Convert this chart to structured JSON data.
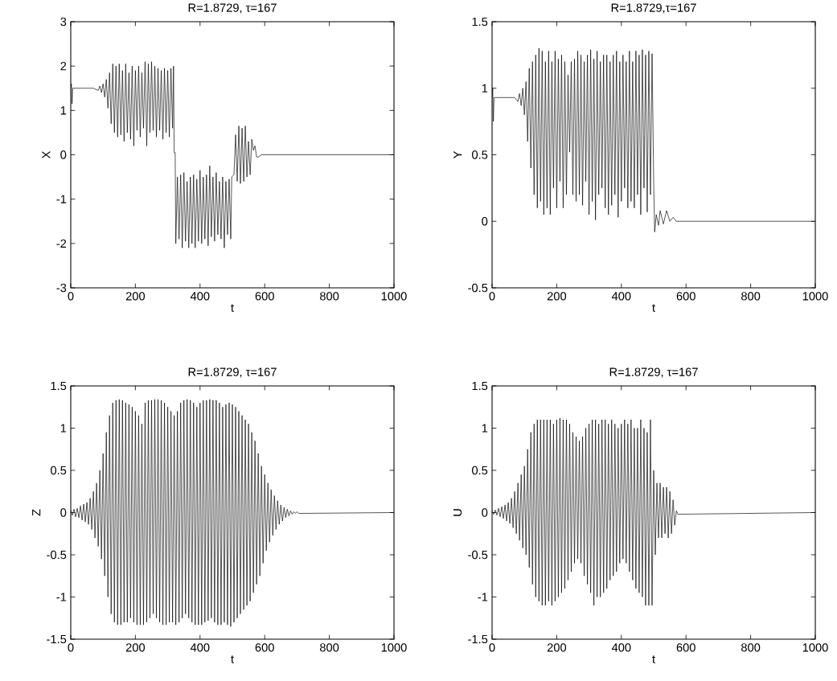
{
  "chart_data": [
    {
      "type": "line",
      "title": "R=1.8729, τ=167",
      "xlabel": "t",
      "ylabel": "X",
      "color": "#000000",
      "xlim": [
        0,
        1000
      ],
      "ylim": [
        -3,
        3
      ],
      "xticks": [
        0,
        200,
        400,
        600,
        800,
        1000
      ],
      "yticks": [
        -3,
        -2,
        -1,
        0,
        1,
        2,
        3
      ],
      "x": [
        0,
        2,
        4,
        6,
        70,
        85,
        90,
        95,
        100,
        105,
        110,
        115,
        120,
        125,
        130,
        135,
        140,
        145,
        150,
        155,
        160,
        165,
        170,
        175,
        180,
        185,
        190,
        195,
        200,
        205,
        210,
        215,
        220,
        225,
        230,
        232,
        235,
        240,
        245,
        250,
        255,
        260,
        265,
        270,
        275,
        280,
        285,
        290,
        295,
        300,
        305,
        310,
        315,
        318,
        320,
        323,
        325,
        330,
        335,
        340,
        345,
        350,
        355,
        360,
        365,
        370,
        375,
        380,
        385,
        390,
        395,
        400,
        405,
        410,
        415,
        420,
        425,
        430,
        435,
        440,
        445,
        450,
        455,
        460,
        465,
        470,
        475,
        480,
        485,
        490,
        495,
        498,
        505,
        510,
        515,
        520,
        525,
        530,
        535,
        540,
        545,
        550,
        555,
        560,
        565,
        570,
        575,
        580,
        590,
        1000
      ],
      "values": [
        1.5,
        1.6,
        1.15,
        1.5,
        1.5,
        1.45,
        1.55,
        1.4,
        1.6,
        1.3,
        1.7,
        1.05,
        1.85,
        0.7,
        2.05,
        0.5,
        2.0,
        0.4,
        2.05,
        0.45,
        1.9,
        0.3,
        2.05,
        0.5,
        1.85,
        0.35,
        2.0,
        0.2,
        1.9,
        0.55,
        2.0,
        0.4,
        1.85,
        0.6,
        2.1,
        1.4,
        0.2,
        2.05,
        0.5,
        2.1,
        0.55,
        2.0,
        0.4,
        1.95,
        0.55,
        1.9,
        0.35,
        1.95,
        0.5,
        1.9,
        0.4,
        1.95,
        0.6,
        2.0,
        0.05,
        0.05,
        -2.0,
        -0.5,
        -1.9,
        -0.45,
        -2.1,
        -0.4,
        -1.95,
        -0.6,
        -2.1,
        -0.5,
        -2.0,
        -0.45,
        -2.1,
        -0.55,
        -1.95,
        -0.35,
        -2.0,
        -0.5,
        -1.9,
        -0.45,
        -2.05,
        -0.25,
        -1.85,
        -0.5,
        -1.95,
        -0.4,
        -1.8,
        -0.6,
        -1.9,
        -0.5,
        -2.1,
        -0.6,
        -1.8,
        -0.55,
        -1.9,
        -0.5,
        -0.45,
        0.45,
        -0.6,
        0.65,
        -0.65,
        0.6,
        -0.6,
        0.65,
        -0.5,
        0.3,
        -0.45,
        0.35,
        0.1,
        0.2,
        -0.05,
        -0.05,
        0,
        0
      ]
    },
    {
      "type": "line",
      "title": "R=1.8729,τ=167",
      "xlabel": "t",
      "ylabel": "Y",
      "color": "#000000",
      "xlim": [
        0,
        1000
      ],
      "ylim": [
        -0.5,
        1.5
      ],
      "xticks": [
        0,
        200,
        400,
        600,
        800,
        1000
      ],
      "yticks": [
        -0.5,
        0,
        0.5,
        1,
        1.5
      ],
      "x": [
        0,
        2,
        4,
        6,
        70,
        80,
        85,
        90,
        95,
        100,
        105,
        110,
        115,
        120,
        125,
        130,
        135,
        140,
        145,
        150,
        155,
        160,
        165,
        170,
        175,
        180,
        185,
        190,
        195,
        200,
        205,
        210,
        215,
        220,
        225,
        230,
        235,
        240,
        245,
        250,
        255,
        260,
        265,
        270,
        275,
        280,
        285,
        290,
        295,
        300,
        305,
        310,
        315,
        320,
        325,
        330,
        335,
        340,
        345,
        350,
        355,
        360,
        365,
        370,
        375,
        380,
        385,
        390,
        395,
        400,
        405,
        410,
        415,
        420,
        425,
        430,
        435,
        440,
        445,
        450,
        455,
        460,
        465,
        470,
        475,
        480,
        485,
        490,
        495,
        500,
        503,
        508,
        515,
        520,
        530,
        540,
        550,
        560,
        570,
        1000
      ],
      "values": [
        0.93,
        1.0,
        0.75,
        0.93,
        0.93,
        0.9,
        0.96,
        0.87,
        1.0,
        0.8,
        1.05,
        0.6,
        1.15,
        0.4,
        1.2,
        0.2,
        1.25,
        0.1,
        1.3,
        0.15,
        1.28,
        0.05,
        1.2,
        0.1,
        1.28,
        0.05,
        1.2,
        0.25,
        1.28,
        0.1,
        1.22,
        0.3,
        1.25,
        0.1,
        1.2,
        0.2,
        1.1,
        0.52,
        1.2,
        0.2,
        1.22,
        0.15,
        1.28,
        0.2,
        1.25,
        0.12,
        1.2,
        0.3,
        1.25,
        0.05,
        1.29,
        0.15,
        1.22,
        0.01,
        1.28,
        0.2,
        1.2,
        0.25,
        1.25,
        0.1,
        1.25,
        0.05,
        1.2,
        0.12,
        1.25,
        0.2,
        1.28,
        0.03,
        1.2,
        0.15,
        1.25,
        0.25,
        1.2,
        0.1,
        1.28,
        0.15,
        1.2,
        0.1,
        1.28,
        0.2,
        1.25,
        0.05,
        1.29,
        0.25,
        1.25,
        0.07,
        1.28,
        0.2,
        1.26,
        0.3,
        -0.08,
        0.05,
        -0.03,
        0.08,
        -0.02,
        0.08,
        0,
        0.03,
        0,
        0
      ]
    },
    {
      "type": "line",
      "title": "R=1.8729, τ=167",
      "xlabel": "t",
      "ylabel": "Z",
      "color": "#000000",
      "xlim": [
        0,
        1000
      ],
      "ylim": [
        -1.5,
        1.5
      ],
      "xticks": [
        0,
        200,
        400,
        600,
        800,
        1000
      ],
      "yticks": [
        -1.5,
        -1,
        -0.5,
        0,
        0.5,
        1,
        1.5
      ],
      "x": [
        0,
        5,
        10,
        15,
        20,
        25,
        30,
        35,
        40,
        45,
        50,
        55,
        60,
        65,
        70,
        75,
        80,
        85,
        90,
        95,
        100,
        105,
        110,
        115,
        120,
        125,
        130,
        135,
        140,
        145,
        150,
        155,
        160,
        165,
        170,
        175,
        180,
        185,
        190,
        195,
        200,
        205,
        210,
        215,
        220,
        225,
        230,
        235,
        240,
        245,
        250,
        255,
        260,
        265,
        270,
        275,
        280,
        285,
        290,
        295,
        300,
        305,
        310,
        315,
        320,
        325,
        330,
        335,
        340,
        345,
        350,
        355,
        360,
        365,
        370,
        375,
        380,
        385,
        390,
        395,
        400,
        405,
        410,
        415,
        420,
        425,
        430,
        435,
        440,
        445,
        450,
        455,
        460,
        465,
        470,
        475,
        480,
        485,
        490,
        495,
        500,
        505,
        510,
        515,
        520,
        525,
        530,
        535,
        540,
        545,
        550,
        555,
        560,
        565,
        570,
        575,
        580,
        585,
        590,
        595,
        600,
        605,
        610,
        615,
        620,
        625,
        630,
        635,
        640,
        645,
        650,
        655,
        660,
        665,
        670,
        675,
        680,
        685,
        690,
        695,
        700,
        705,
        1000
      ],
      "values": [
        0.03,
        -0.03,
        0.04,
        -0.05,
        0.05,
        -0.06,
        0.08,
        -0.09,
        0.1,
        -0.11,
        0.12,
        -0.14,
        0.17,
        -0.2,
        0.25,
        -0.3,
        0.35,
        -0.4,
        0.5,
        -0.55,
        0.7,
        -0.75,
        0.95,
        -1.0,
        1.15,
        -1.2,
        1.3,
        -1.3,
        1.33,
        -1.33,
        1.34,
        -1.33,
        1.33,
        -1.3,
        1.3,
        -1.3,
        1.28,
        -1.25,
        1.25,
        -1.3,
        1.2,
        -1.33,
        1.15,
        -1.33,
        1.05,
        -1.33,
        1.3,
        -1.3,
        1.33,
        -1.25,
        1.33,
        -1.2,
        1.34,
        -1.25,
        1.34,
        -1.3,
        1.33,
        -1.33,
        1.3,
        -1.33,
        1.25,
        -1.3,
        1.2,
        -1.3,
        1.15,
        -1.33,
        1.2,
        -1.3,
        1.3,
        -1.25,
        1.33,
        -1.2,
        1.34,
        -1.25,
        1.33,
        -1.3,
        1.3,
        -1.33,
        1.25,
        -1.33,
        1.3,
        -1.33,
        1.33,
        -1.3,
        1.33,
        -1.28,
        1.34,
        -1.25,
        1.33,
        -1.3,
        1.33,
        -1.33,
        1.3,
        -1.33,
        1.25,
        -1.3,
        1.28,
        -1.33,
        1.3,
        -1.35,
        1.28,
        -1.3,
        1.25,
        -1.25,
        1.2,
        -1.2,
        1.15,
        -1.15,
        1.1,
        -1.1,
        1.05,
        -1.05,
        0.95,
        -0.95,
        0.85,
        -0.85,
        0.7,
        -0.75,
        0.55,
        -0.6,
        0.45,
        -0.45,
        0.35,
        -0.35,
        0.27,
        -0.27,
        0.2,
        -0.2,
        0.14,
        -0.14,
        0.09,
        -0.1,
        0.06,
        -0.06,
        0.04,
        -0.04,
        0.02,
        -0.02,
        0.01,
        -0.01,
        0.01,
        -0.01,
        0
      ]
    },
    {
      "type": "line",
      "title": "R=1.8729, τ=167",
      "xlabel": "t",
      "ylabel": "U",
      "color": "#000000",
      "xlim": [
        0,
        1000
      ],
      "ylim": [
        -1.5,
        1.5
      ],
      "xticks": [
        0,
        200,
        400,
        600,
        800,
        1000
      ],
      "yticks": [
        -1.5,
        -1,
        -0.5,
        0,
        0.5,
        1,
        1.5
      ],
      "x": [
        0,
        5,
        10,
        15,
        20,
        25,
        30,
        35,
        40,
        45,
        50,
        55,
        60,
        65,
        70,
        75,
        80,
        85,
        90,
        95,
        100,
        105,
        110,
        115,
        120,
        125,
        130,
        135,
        140,
        145,
        150,
        155,
        160,
        165,
        170,
        175,
        180,
        185,
        190,
        195,
        200,
        205,
        210,
        215,
        220,
        225,
        230,
        235,
        240,
        245,
        250,
        255,
        260,
        265,
        270,
        275,
        280,
        285,
        290,
        295,
        300,
        305,
        310,
        315,
        320,
        325,
        330,
        335,
        340,
        345,
        350,
        355,
        360,
        365,
        370,
        375,
        380,
        385,
        390,
        395,
        400,
        405,
        410,
        415,
        420,
        425,
        430,
        435,
        440,
        445,
        450,
        455,
        460,
        465,
        470,
        475,
        480,
        485,
        490,
        495,
        500,
        505,
        510,
        515,
        520,
        525,
        530,
        535,
        540,
        545,
        550,
        555,
        560,
        565,
        570,
        575,
        1000
      ],
      "values": [
        0.02,
        -0.02,
        0.03,
        -0.03,
        0.05,
        -0.05,
        0.07,
        -0.07,
        0.09,
        -0.1,
        0.12,
        -0.13,
        0.17,
        -0.18,
        0.25,
        -0.25,
        0.35,
        -0.33,
        0.45,
        -0.42,
        0.55,
        -0.5,
        0.75,
        -0.65,
        0.95,
        -0.85,
        1.05,
        -1.0,
        1.1,
        -1.05,
        1.1,
        -1.1,
        1.1,
        -1.1,
        1.1,
        -1.05,
        1.1,
        -1.1,
        1.05,
        -1.05,
        1.1,
        -1.0,
        1.12,
        -0.95,
        1.1,
        -0.9,
        1.1,
        -0.8,
        1.05,
        -0.7,
        0.95,
        -0.6,
        0.9,
        -0.55,
        0.85,
        -0.6,
        0.9,
        -0.75,
        1.0,
        -0.85,
        1.05,
        -0.95,
        1.1,
        -1.1,
        1.1,
        -1.0,
        1.05,
        -1.0,
        1.1,
        -0.95,
        1.1,
        -0.9,
        1.05,
        -0.8,
        1.1,
        -0.75,
        1.05,
        -0.7,
        1.0,
        -0.6,
        1.05,
        -0.55,
        1.1,
        -0.6,
        1.05,
        -0.7,
        1.1,
        -0.8,
        1.0,
        -0.9,
        1.0,
        -0.95,
        1.1,
        -1.0,
        1.0,
        -1.1,
        0.95,
        -1.1,
        1.1,
        -1.1,
        0.5,
        -0.5,
        0.35,
        -0.3,
        0.35,
        -0.3,
        0.3,
        -0.25,
        0.3,
        -0.3,
        0.25,
        -0.25,
        0.15,
        -0.15,
        0.02,
        -0.02,
        0
      ]
    }
  ]
}
